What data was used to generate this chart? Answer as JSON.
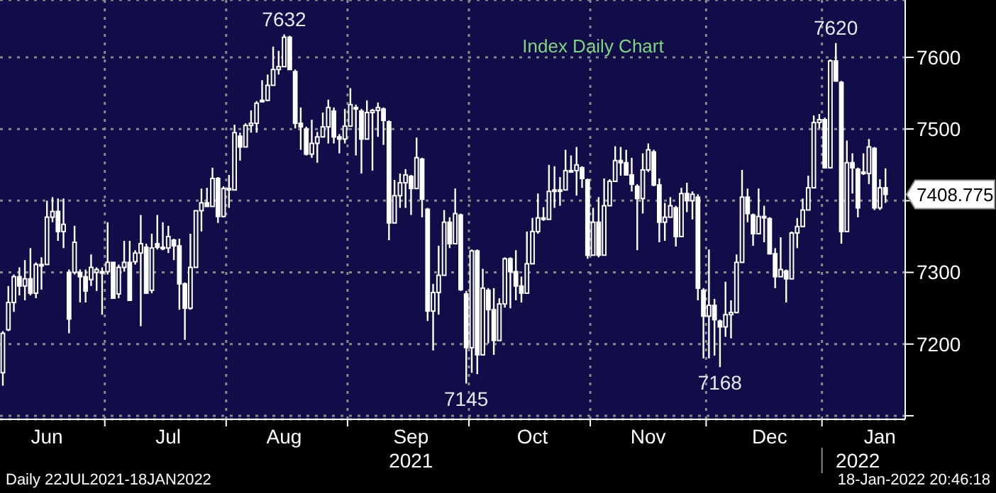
{
  "chart_data": {
    "type": "candlestick",
    "title": "Index Daily Chart",
    "categories": [
      null,
      null,
      null,
      null,
      null,
      null,
      null,
      null,
      "Jun",
      null,
      null,
      null,
      null,
      null,
      null,
      null,
      null,
      null,
      null,
      null,
      null,
      null,
      null,
      null,
      null,
      null,
      null,
      null,
      null,
      null,
      "Jul",
      null,
      null,
      null,
      null,
      null,
      null,
      null,
      null,
      null,
      null,
      null,
      null,
      null,
      null,
      null,
      null,
      null,
      null,
      null,
      null,
      "Aug",
      null,
      null,
      null,
      null,
      null,
      null,
      null,
      null,
      null,
      null,
      null,
      null,
      null,
      null,
      null,
      null,
      null,
      null,
      null,
      null,
      null,
      null,
      "Sep",
      null,
      null,
      null,
      null,
      null,
      null,
      null,
      null,
      null,
      null,
      null,
      null,
      null,
      null,
      null,
      null,
      null,
      null,
      null,
      null,
      null,
      "Oct",
      null,
      null,
      null,
      null,
      null,
      null,
      null,
      null,
      null,
      null,
      null,
      null,
      null,
      null,
      null,
      null,
      null,
      null,
      null,
      null,
      "Nov",
      null,
      null,
      null,
      null,
      null,
      null,
      null,
      null,
      null,
      null,
      null,
      null,
      null,
      null,
      null,
      null,
      null,
      null,
      null,
      null,
      null,
      "Dec",
      null,
      null,
      null,
      null,
      null,
      null,
      null,
      null,
      null,
      null,
      null,
      null,
      null,
      null,
      null,
      null,
      null,
      null,
      null,
      "Jan",
      null
    ],
    "ohlc": [
      [
        7160,
        7218,
        7142,
        7215
      ],
      [
        7220,
        7281,
        7218,
        7258
      ],
      [
        7258,
        7297,
        7245,
        7294
      ],
      [
        7294,
        7307,
        7268,
        7281
      ],
      [
        7281,
        7317,
        7261,
        7291
      ],
      [
        7291,
        7334,
        7268,
        7271
      ],
      [
        7271,
        7314,
        7264,
        7311
      ],
      [
        7311,
        7321,
        7276,
        7311
      ],
      [
        7311,
        7400,
        7311,
        7377
      ],
      [
        7377,
        7405,
        7370,
        7385
      ],
      [
        7385,
        7403,
        7344,
        7357
      ],
      [
        7357,
        7403,
        7334,
        7367
      ],
      [
        7300,
        7304,
        7215,
        7235
      ],
      [
        7300,
        7365,
        7297,
        7342
      ],
      [
        7300,
        7304,
        7258,
        7294
      ],
      [
        7294,
        7304,
        7258,
        7274
      ],
      [
        7290,
        7325,
        7281,
        7307
      ],
      [
        7300,
        7307,
        7274,
        7304
      ],
      [
        7300,
        7307,
        7241,
        7301
      ],
      [
        7301,
        7370,
        7297,
        7314
      ],
      [
        7314,
        7314,
        7264,
        7264
      ],
      [
        7270,
        7311,
        7264,
        7307
      ],
      [
        7307,
        7344,
        7301,
        7314
      ],
      [
        7314,
        7344,
        7261,
        7261
      ],
      [
        7315,
        7331,
        7311,
        7327
      ],
      [
        7327,
        7380,
        7225,
        7340
      ],
      [
        7335,
        7340,
        7271,
        7271
      ],
      [
        7275,
        7354,
        7271,
        7334
      ],
      [
        7340,
        7380,
        7332,
        7335
      ],
      [
        7335,
        7370,
        7331,
        7334
      ],
      [
        7334,
        7365,
        7327,
        7350
      ],
      [
        7345,
        7347,
        7317,
        7337
      ],
      [
        7337,
        7347,
        7248,
        7284
      ],
      [
        7284,
        7286,
        7206,
        7250
      ],
      [
        7250,
        7354,
        7248,
        7307
      ],
      [
        7307,
        7386,
        7307,
        7386
      ],
      [
        7386,
        7417,
        7357,
        7397
      ],
      [
        7397,
        7418,
        7392,
        7392
      ],
      [
        7392,
        7446,
        7392,
        7431
      ],
      [
        7431,
        7433,
        7369,
        7378
      ],
      [
        7378,
        7420,
        7377,
        7417
      ],
      [
        7417,
        7436,
        7390,
        7415
      ],
      [
        7415,
        7506,
        7415,
        7495
      ],
      [
        7490,
        7495,
        7456,
        7475
      ],
      [
        7475,
        7508,
        7475,
        7505
      ],
      [
        7505,
        7526,
        7495,
        7508
      ],
      [
        7508,
        7539,
        7495,
        7536
      ],
      [
        7540,
        7568,
        7539,
        7540
      ],
      [
        7540,
        7576,
        7539,
        7561
      ],
      [
        7561,
        7615,
        7561,
        7583
      ],
      [
        7583,
        7609,
        7576,
        7587
      ],
      [
        7587,
        7632,
        7587,
        7628
      ],
      [
        7628,
        7630,
        7583,
        7583
      ],
      [
        7580,
        7583,
        7501,
        7508
      ],
      [
        7508,
        7530,
        7471,
        7503
      ],
      [
        7500,
        7503,
        7463,
        7465
      ],
      [
        7465,
        7513,
        7460,
        7480
      ],
      [
        7480,
        7496,
        7453,
        7489
      ],
      [
        7489,
        7523,
        7489,
        7503
      ],
      [
        7503,
        7541,
        7480,
        7530
      ],
      [
        7525,
        7530,
        7480,
        7489
      ],
      [
        7489,
        7493,
        7466,
        7486
      ],
      [
        7486,
        7528,
        7480,
        7504
      ],
      [
        7504,
        7557,
        7503,
        7534
      ],
      [
        7530,
        7534,
        7463,
        7528
      ],
      [
        7525,
        7528,
        7438,
        7486
      ],
      [
        7486,
        7540,
        7486,
        7523
      ],
      [
        7523,
        7528,
        7442,
        7526
      ],
      [
        7526,
        7537,
        7489,
        7530
      ],
      [
        7528,
        7530,
        7478,
        7512
      ],
      [
        7510,
        7512,
        7345,
        7369
      ],
      [
        7369,
        7429,
        7369,
        7407
      ],
      [
        7407,
        7438,
        7390,
        7425
      ],
      [
        7425,
        7444,
        7390,
        7436
      ],
      [
        7434,
        7436,
        7380,
        7417
      ],
      [
        7417,
        7488,
        7417,
        7460
      ],
      [
        7458,
        7460,
        7377,
        7402
      ],
      [
        7388,
        7390,
        7232,
        7246
      ],
      [
        7246,
        7284,
        7191,
        7272
      ],
      [
        7272,
        7337,
        7241,
        7296
      ],
      [
        7296,
        7387,
        7296,
        7370
      ],
      [
        7370,
        7377,
        7334,
        7340
      ],
      [
        7340,
        7417,
        7340,
        7382
      ],
      [
        7380,
        7382,
        7274,
        7276
      ],
      [
        7270,
        7274,
        7145,
        7195
      ],
      [
        7195,
        7332,
        7160,
        7330
      ],
      [
        7330,
        7332,
        7158,
        7185
      ],
      [
        7185,
        7305,
        7185,
        7278
      ],
      [
        7275,
        7278,
        7201,
        7248
      ],
      [
        7248,
        7278,
        7185,
        7205
      ],
      [
        7205,
        7264,
        7205,
        7256
      ],
      [
        7256,
        7321,
        7251,
        7319
      ],
      [
        7319,
        7321,
        7250,
        7301
      ],
      [
        7301,
        7331,
        7261,
        7281
      ],
      [
        7281,
        7294,
        7258,
        7271
      ],
      [
        7271,
        7357,
        7271,
        7312
      ],
      [
        7312,
        7376,
        7312,
        7357
      ],
      [
        7357,
        7410,
        7354,
        7376
      ],
      [
        7376,
        7391,
        7372,
        7374
      ],
      [
        7374,
        7450,
        7374,
        7413
      ],
      [
        7413,
        7448,
        7390,
        7415
      ],
      [
        7415,
        7433,
        7393,
        7415
      ],
      [
        7415,
        7471,
        7415,
        7442
      ],
      [
        7442,
        7463,
        7440,
        7442
      ],
      [
        7442,
        7475,
        7407,
        7450
      ],
      [
        7446,
        7448,
        7418,
        7431
      ],
      [
        7429,
        7431,
        7319,
        7324
      ],
      [
        7324,
        7390,
        7324,
        7370
      ],
      [
        7370,
        7405,
        7321,
        7324
      ],
      [
        7324,
        7431,
        7324,
        7393
      ],
      [
        7393,
        7430,
        7393,
        7427
      ],
      [
        7427,
        7476,
        7427,
        7456
      ],
      [
        7456,
        7475,
        7435,
        7453
      ],
      [
        7453,
        7471,
        7435,
        7436
      ],
      [
        7436,
        7460,
        7413,
        7423
      ],
      [
        7420,
        7423,
        7331,
        7403
      ],
      [
        7403,
        7466,
        7382,
        7443
      ],
      [
        7443,
        7480,
        7440,
        7471
      ],
      [
        7468,
        7471,
        7420,
        7422
      ],
      [
        7422,
        7431,
        7342,
        7370
      ],
      [
        7370,
        7397,
        7344,
        7377
      ],
      [
        7377,
        7405,
        7377,
        7393
      ],
      [
        7390,
        7393,
        7336,
        7350
      ],
      [
        7350,
        7418,
        7350,
        7410
      ],
      [
        7410,
        7425,
        7384,
        7400
      ],
      [
        7400,
        7413,
        7374,
        7409
      ],
      [
        7405,
        7409,
        7261,
        7278
      ],
      [
        7275,
        7278,
        7180,
        7239
      ],
      [
        7239,
        7332,
        7180,
        7254
      ],
      [
        7254,
        7263,
        7184,
        7234
      ],
      [
        7232,
        7234,
        7168,
        7224
      ],
      [
        7224,
        7287,
        7210,
        7241
      ],
      [
        7241,
        7261,
        7208,
        7244
      ],
      [
        7244,
        7325,
        7243,
        7314
      ],
      [
        7314,
        7443,
        7314,
        7405
      ],
      [
        7405,
        7417,
        7370,
        7382
      ],
      [
        7380,
        7382,
        7337,
        7354
      ],
      [
        7354,
        7417,
        7354,
        7378
      ],
      [
        7378,
        7393,
        7342,
        7377
      ],
      [
        7375,
        7377,
        7325,
        7326
      ],
      [
        7326,
        7334,
        7278,
        7294
      ],
      [
        7294,
        7349,
        7294,
        7304
      ],
      [
        7302,
        7304,
        7258,
        7291
      ],
      [
        7291,
        7357,
        7291,
        7355
      ],
      [
        7355,
        7376,
        7334,
        7364
      ],
      [
        7364,
        7403,
        7364,
        7387
      ],
      [
        7387,
        7435,
        7387,
        7418
      ],
      [
        7418,
        7519,
        7418,
        7509
      ],
      [
        7509,
        7521,
        7501,
        7513
      ],
      [
        7513,
        7516,
        7445,
        7446
      ],
      [
        7446,
        7597,
        7445,
        7595
      ],
      [
        7595,
        7620,
        7566,
        7567
      ],
      [
        7565,
        7567,
        7340,
        7357
      ],
      [
        7357,
        7484,
        7357,
        7453
      ],
      [
        7453,
        7466,
        7410,
        7446
      ],
      [
        7444,
        7446,
        7377,
        7390
      ],
      [
        7440,
        7466,
        7436,
        7438
      ],
      [
        7438,
        7486,
        7423,
        7475
      ],
      [
        7473,
        7475,
        7387,
        7390
      ],
      [
        7390,
        7430,
        7387,
        7418
      ],
      [
        7418,
        7445,
        7397,
        7408.775
      ]
    ],
    "color": "#ffffff",
    "ylim": [
      7095,
      7680
    ],
    "yticks": [
      {
        "value": 7100,
        "label": null
      },
      7200,
      7300,
      {
        "value": 7400,
        "label": null
      },
      7500,
      7600
    ],
    "grid": true,
    "annotations": [
      "2021",
      "2022",
      "Daily 22JUL2021-18JAN2022",
      "18-Jan-2022 20:46:18",
      "7408.775",
      {
        "text": "7632",
        "y": 7632
      },
      {
        "text": "7145",
        "y": 7145
      },
      {
        "text": "7168",
        "y": 7168
      },
      {
        "text": "7620",
        "y": 7620
      }
    ]
  }
}
